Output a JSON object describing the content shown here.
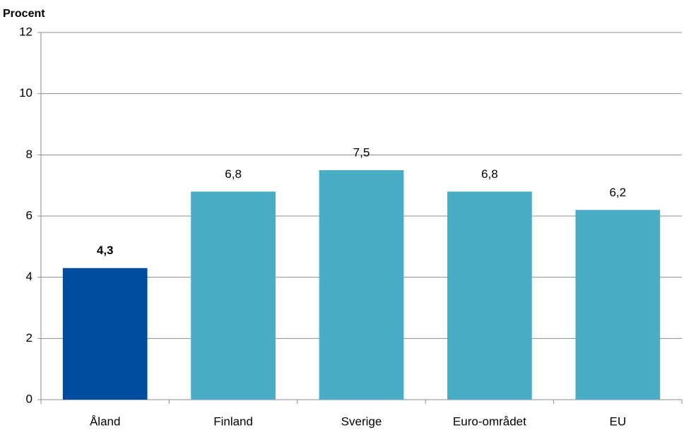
{
  "chart_data": {
    "type": "bar",
    "ylabel": "Procent",
    "categories": [
      "Åland",
      "Finland",
      "Sverige",
      "Euro-området",
      "EU"
    ],
    "values": [
      4.3,
      6.8,
      7.5,
      6.8,
      6.2
    ],
    "value_labels": [
      "4,3",
      "6,8",
      "7,5",
      "6,8",
      "6,2"
    ],
    "colors": [
      "#004c9f",
      "#4bacc6",
      "#4bacc6",
      "#4bacc6",
      "#4bacc6"
    ],
    "ylim": [
      0,
      12
    ],
    "yticks": [
      0,
      2,
      4,
      6,
      8,
      10,
      12
    ],
    "grid": true
  }
}
